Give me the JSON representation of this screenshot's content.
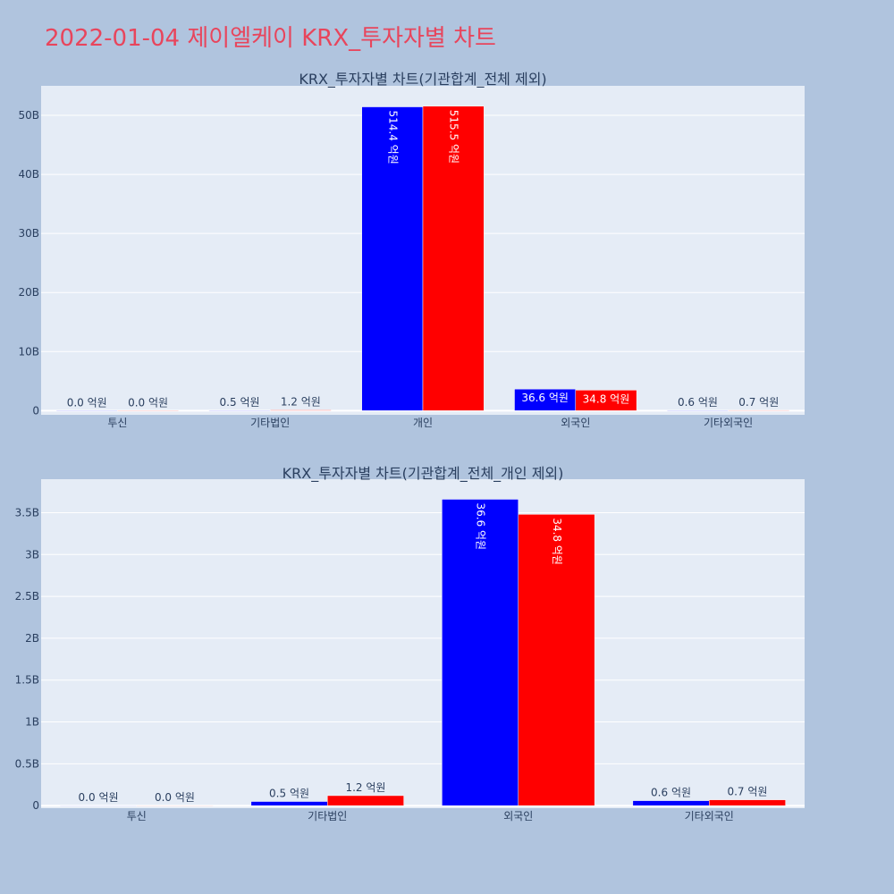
{
  "title": "2022-01-04 제이엘케이 KRX_투자자별 차트",
  "colors": {
    "background": "#b0c4de",
    "plot_bg": "#e5ecf6",
    "title": "#e8455c",
    "text": "#2a3f5f",
    "series_a": "#0000ff",
    "series_b": "#ff0000"
  },
  "chart_data": [
    {
      "type": "bar",
      "title": "KRX_투자자별 차트(기관합계_전체 제외)",
      "categories": [
        "투신",
        "기타법인",
        "개인",
        "외국인",
        "기타외국인"
      ],
      "series": [
        {
          "values": [
            0.0,
            0.05,
            51.44,
            3.66,
            0.06
          ],
          "labels": [
            "0.0 억원",
            "0.5 억원",
            "514.4 억원",
            "36.6 억원",
            "0.6 억원"
          ]
        },
        {
          "values": [
            0.0,
            0.12,
            51.55,
            3.48,
            0.07
          ],
          "labels": [
            "0.0 억원",
            "1.2 억원",
            "515.5 억원",
            "34.8 억원",
            "0.7 억원"
          ]
        }
      ],
      "unit": "B",
      "ylim": [
        -0.7,
        55.0
      ],
      "yticks": [
        0,
        10,
        20,
        30,
        40,
        50
      ],
      "ytick_labels": [
        "0",
        "10B",
        "20B",
        "30B",
        "40B",
        "50B"
      ],
      "grid": true
    },
    {
      "type": "bar",
      "title": "KRX_투자자별 차트(기관합계_전체_개인 제외)",
      "categories": [
        "투신",
        "기타법인",
        "외국인",
        "기타외국인"
      ],
      "series": [
        {
          "values": [
            0.0,
            0.05,
            3.66,
            0.06
          ],
          "labels": [
            "0.0 억원",
            "0.5 억원",
            "36.6 억원",
            "0.6 억원"
          ]
        },
        {
          "values": [
            0.0,
            0.12,
            3.48,
            0.07
          ],
          "labels": [
            "0.0 억원",
            "1.2 억원",
            "34.8 억원",
            "0.7 억원"
          ]
        }
      ],
      "unit": "B",
      "ylim": [
        -0.03,
        3.9
      ],
      "yticks": [
        0,
        0.5,
        1,
        1.5,
        2,
        2.5,
        3,
        3.5
      ],
      "ytick_labels": [
        "0",
        "0.5B",
        "1B",
        "1.5B",
        "2B",
        "2.5B",
        "3B",
        "3.5B"
      ],
      "grid": true
    }
  ]
}
